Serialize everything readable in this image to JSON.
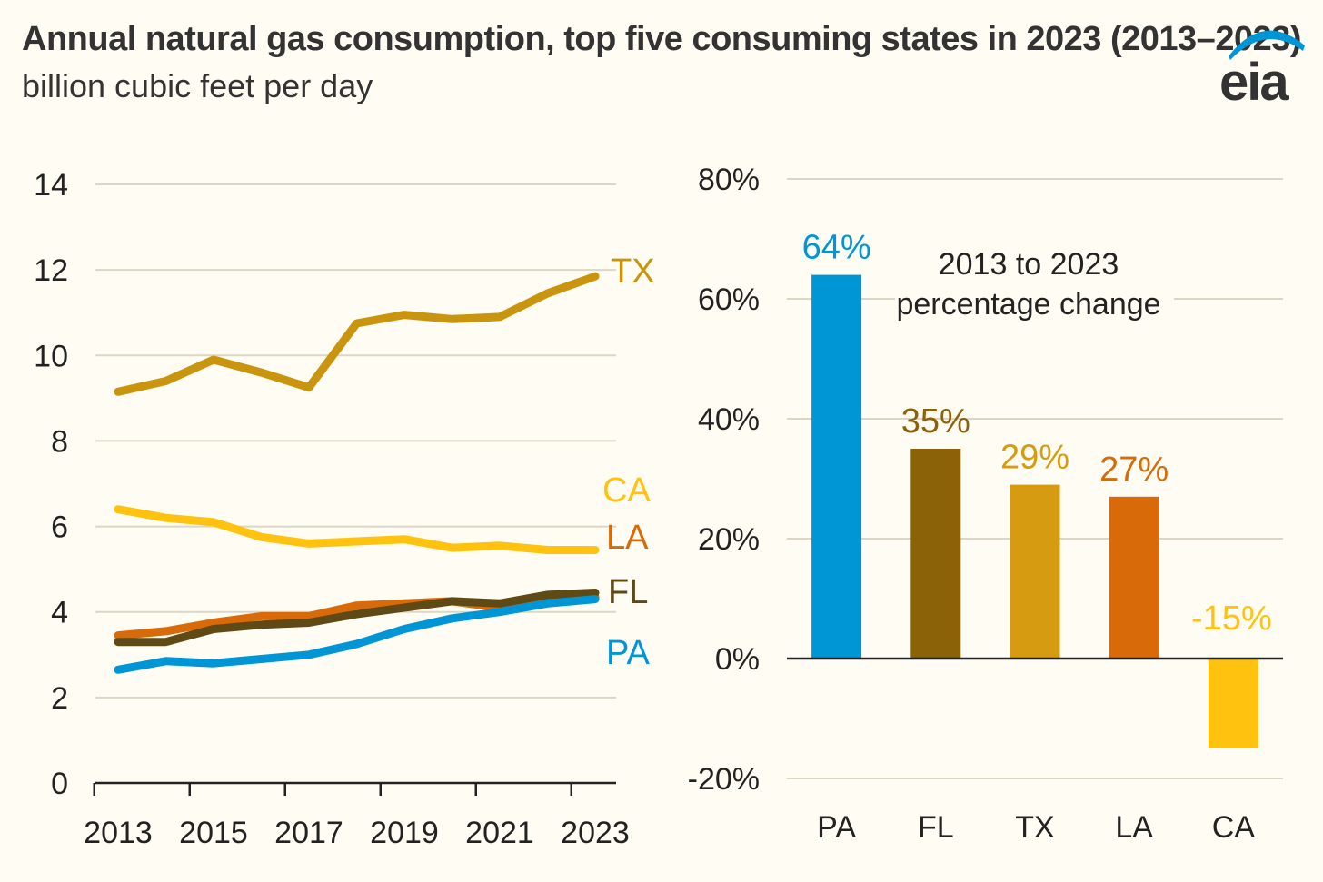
{
  "title": "Annual natural gas consumption, top five consuming states in 2023 (2013–2023)",
  "subtitle": "billion cubic feet per day",
  "logo": {
    "text": "eia",
    "arc_color": "#0096d6",
    "text_color": "#333333"
  },
  "chart_data": [
    {
      "type": "line",
      "x": [
        2013,
        2014,
        2015,
        2016,
        2017,
        2018,
        2019,
        2020,
        2021,
        2022,
        2023
      ],
      "x_tick_labels": [
        "2013",
        "2015",
        "2017",
        "2019",
        "2021",
        "2023"
      ],
      "ylim": [
        0,
        14
      ],
      "y_tick_labels": [
        "0",
        "2",
        "4",
        "6",
        "8",
        "10",
        "12",
        "14"
      ],
      "grid": true,
      "series": [
        {
          "name": "TX",
          "color": "#c9950e",
          "values": [
            9.15,
            9.4,
            9.9,
            9.6,
            9.25,
            10.75,
            10.95,
            10.85,
            10.9,
            11.45,
            11.85
          ]
        },
        {
          "name": "CA",
          "color": "#ffc20e",
          "values": [
            6.4,
            6.2,
            6.1,
            5.75,
            5.6,
            5.65,
            5.7,
            5.5,
            5.55,
            5.45,
            5.45
          ]
        },
        {
          "name": "LA",
          "color": "#d96a0a",
          "values": [
            3.45,
            3.55,
            3.75,
            3.9,
            3.9,
            4.15,
            4.2,
            4.25,
            4.1,
            4.3,
            4.35
          ]
        },
        {
          "name": "FL",
          "color": "#5f4915",
          "values": [
            3.3,
            3.3,
            3.6,
            3.7,
            3.75,
            3.95,
            4.1,
            4.25,
            4.2,
            4.4,
            4.45
          ]
        },
        {
          "name": "PA",
          "color": "#0096d6",
          "values": [
            2.65,
            2.85,
            2.8,
            2.9,
            3.0,
            3.25,
            3.6,
            3.85,
            4.0,
            4.2,
            4.3
          ]
        }
      ]
    },
    {
      "type": "bar",
      "categories": [
        "PA",
        "FL",
        "TX",
        "LA",
        "CA"
      ],
      "values": [
        64,
        35,
        29,
        27,
        -15
      ],
      "value_labels": [
        "64%",
        "35%",
        "29%",
        "27%",
        "-15%"
      ],
      "colors": [
        "#0096d6",
        "#8b6208",
        "#d69b10",
        "#d96a0a",
        "#ffc20e"
      ],
      "label_colors": [
        "#0096d6",
        "#8b6208",
        "#d69b10",
        "#d96a0a",
        "#ffc20e"
      ],
      "ylim": [
        -20,
        80
      ],
      "y_tick_labels": [
        "-20%",
        "0%",
        "20%",
        "40%",
        "60%",
        "80%"
      ],
      "annotation": [
        "2013 to 2023",
        "percentage change"
      ],
      "grid": true
    }
  ]
}
